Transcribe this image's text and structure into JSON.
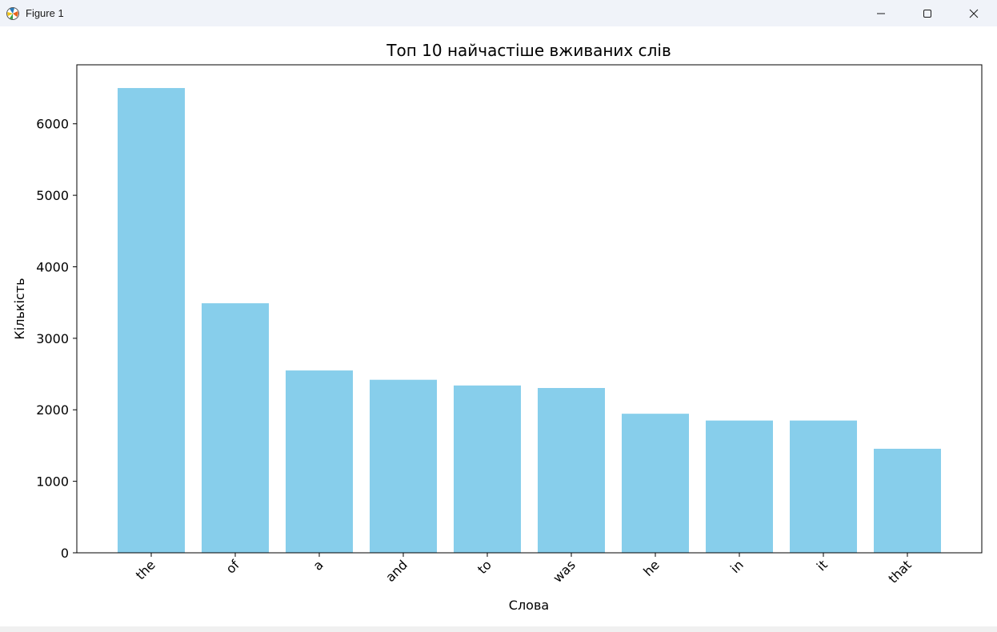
{
  "window": {
    "title": "Figure 1",
    "icon": "matplotlib-icon",
    "controls": [
      "minimize-icon",
      "maximize-icon",
      "close-icon"
    ]
  },
  "chart_data": {
    "type": "bar",
    "title": "Топ 10 найчастіше вживаних слів",
    "xlabel": "Слова",
    "ylabel": "Кількість",
    "categories": [
      "the",
      "of",
      "a",
      "and",
      "to",
      "was",
      "he",
      "in",
      "it",
      "that"
    ],
    "values": [
      6500,
      3490,
      2550,
      2420,
      2340,
      2305,
      1945,
      1850,
      1850,
      1455
    ],
    "ylim": [
      0,
      6825
    ],
    "yticks": [
      0,
      1000,
      2000,
      3000,
      4000,
      5000,
      6000
    ],
    "bar_color": "#87ceeb",
    "grid": false,
    "xtick_rotation": 45
  }
}
